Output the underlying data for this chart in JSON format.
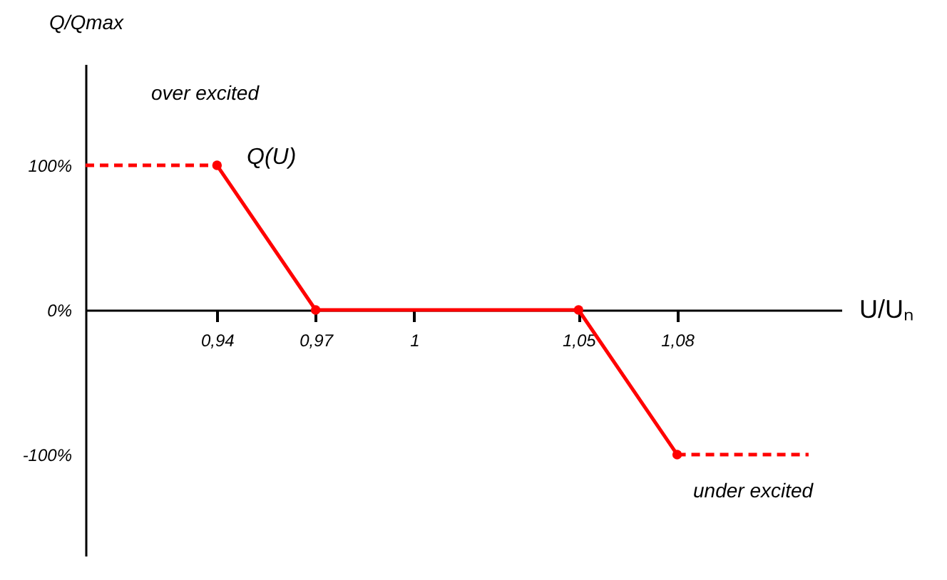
{
  "chart_data": {
    "type": "line",
    "xlabel": "U/Uₙ",
    "ylabel": "Q/Qmax",
    "xlim": [
      0.9,
      1.13
    ],
    "ylim": [
      -170,
      170
    ],
    "xticks": [
      {
        "value": 0.94,
        "label": "0,94"
      },
      {
        "value": 0.97,
        "label": "0,97"
      },
      {
        "value": 1,
        "label": "1"
      },
      {
        "value": 1.05,
        "label": "1,05"
      },
      {
        "value": 1.08,
        "label": "1,08"
      }
    ],
    "yticks": [
      {
        "value": -100,
        "label": "-100%"
      },
      {
        "value": 0,
        "label": "0%"
      },
      {
        "value": 100,
        "label": "100%"
      }
    ],
    "marker": "circle",
    "line_style": "solid",
    "series": [
      {
        "color": "#ff0000",
        "x": [
          0.94,
          0.97,
          1.05,
          1.08
        ],
        "values": [
          100,
          0,
          0,
          -100
        ]
      },
      {
        "color": "#ff0000",
        "x": [
          0.9,
          0.94
        ],
        "values": [
          100,
          100
        ],
        "marker": "none",
        "line_style": "dashed"
      },
      {
        "color": "#ff0000",
        "x": [
          1.08,
          1.12
        ],
        "values": [
          -100,
          -100
        ],
        "marker": "none",
        "line_style": "dashed"
      }
    ],
    "annotations": [
      "Q(U)",
      "over excited",
      "under excited"
    ]
  }
}
